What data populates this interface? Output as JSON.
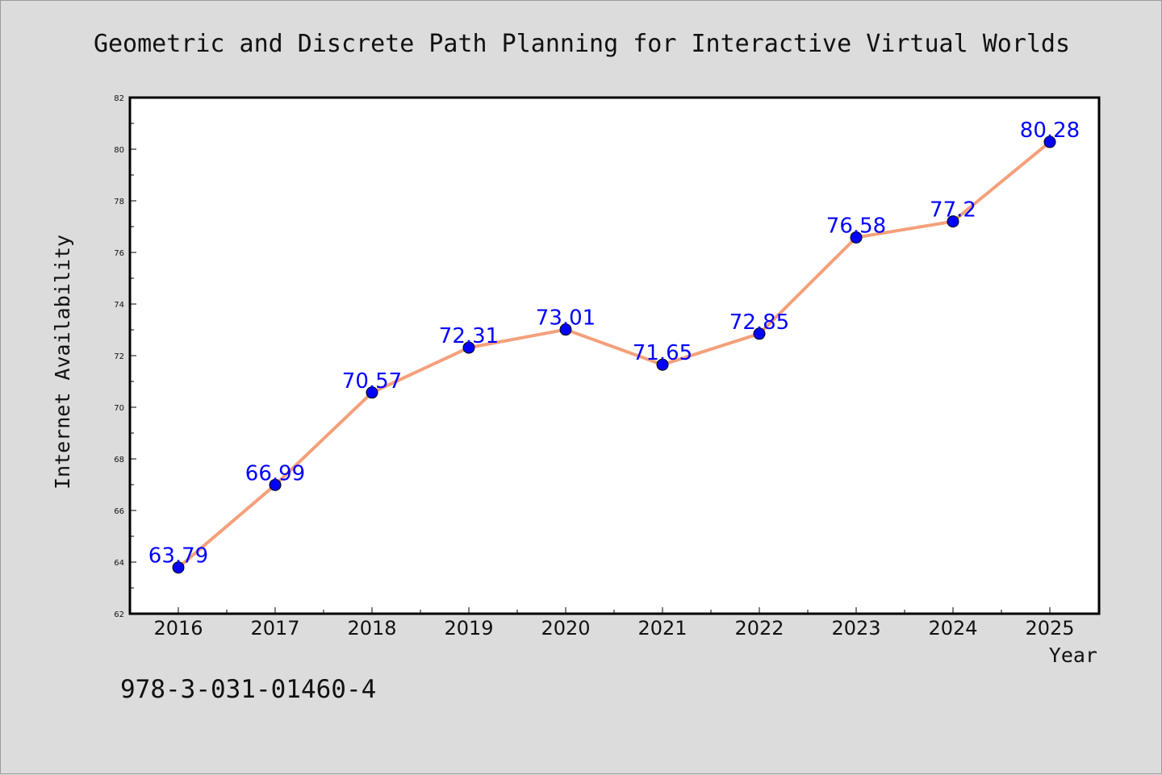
{
  "chart_data": {
    "type": "line",
    "title": "Geometric and Discrete Path Planning for Interactive Virtual Worlds",
    "xlabel": "Year",
    "ylabel": "Internet Availability",
    "categories": [
      "2016",
      "2017",
      "2018",
      "2019",
      "2020",
      "2021",
      "2022",
      "2023",
      "2024",
      "2025"
    ],
    "series": [
      {
        "values": [
          63.79,
          66.99,
          70.57,
          72.31,
          73.01,
          71.65,
          72.85,
          76.58,
          77.2,
          80.28
        ],
        "labels": [
          "63.79",
          "66.99",
          "70.57",
          "72.31",
          "73.01",
          "71.65",
          "72.85",
          "76.58",
          "77.2",
          "80.28"
        ]
      }
    ],
    "ylim": [
      62,
      82
    ],
    "yticks": [
      62,
      64,
      66,
      68,
      70,
      72,
      74,
      76,
      78,
      80,
      82
    ],
    "grid": false,
    "line_color": "#f4a07a",
    "marker_color": "#0000ff"
  },
  "footer": {
    "isbn": "978-3-031-01460-4"
  }
}
